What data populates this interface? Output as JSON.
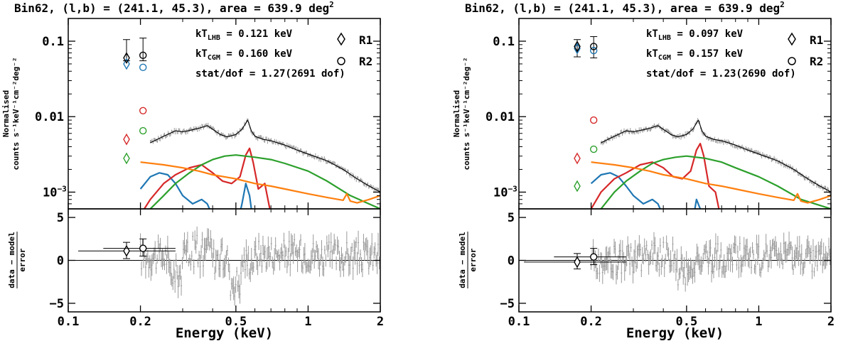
{
  "chart_data": [
    {
      "type": "line",
      "title": "Bin62, (l,b) = (241.1, 45.3), area = 639.9 deg²",
      "xlabel": "Energy (keV)",
      "ylabel_top": "Normalised counts s⁻¹ keV⁻¹ cm⁻² deg⁻²",
      "ylabel_bottom": "(data − model)/error",
      "xscale": "log",
      "xlim": [
        0.1,
        2
      ],
      "top_yscale": "log",
      "top_ylim": [
        0.0006,
        0.2
      ],
      "bottom_ylim": [
        -6,
        6
      ],
      "xticks": [
        "0.1",
        "0.2",
        "0.5",
        "1",
        "2"
      ],
      "top_yticks": [
        "10⁻³",
        "0.01",
        "0.1"
      ],
      "bottom_yticks": [
        "−5",
        "0",
        "5"
      ],
      "annotations": [
        "kT_LHB = 0.121 keV",
        "kT_CGM = 0.160 keV",
        "stat/dof = 1.27(2691 dof)"
      ],
      "legend": [
        {
          "name": "R1",
          "marker": "diamond"
        },
        {
          "name": "R2",
          "marker": "circle"
        }
      ],
      "colors": {
        "blue": "#1f77b4",
        "red": "#d62728",
        "green": "#2ca02c",
        "orange": "#ff7f0e",
        "gray": "#999999"
      },
      "rosat_points": {
        "R1": {
          "x": 0.175,
          "total": 0.06,
          "total_err": [
            0.055,
            0.105
          ],
          "blue": 0.05,
          "red": 0.005,
          "green": 0.0028,
          "residual": 1.1,
          "residual_err": [
            0.2,
            2.1
          ],
          "residual_xerr": [
            0.11,
            0.28
          ]
        },
        "R2": {
          "x": 0.205,
          "total": 0.065,
          "total_err": [
            0.055,
            0.11
          ],
          "blue": 0.045,
          "red": 0.012,
          "green": 0.0065,
          "residual": 1.4,
          "residual_err": [
            0.5,
            2.5
          ],
          "residual_xerr": [
            0.14,
            0.28
          ]
        }
      },
      "series": [
        {
          "name": "",
          "color": "blue",
          "x": [
            0.2,
            0.22,
            0.24,
            0.26,
            0.28,
            0.3,
            0.33,
            0.36,
            0.38,
            0.41,
            0.44,
            0.5,
            0.53,
            0.55,
            0.57,
            0.59,
            0.61
          ],
          "y": [
            0.0011,
            0.0016,
            0.0018,
            0.0017,
            0.0013,
            0.0009,
            0.0007,
            0.0008,
            0.0007,
            0.0004,
            0.0002,
            0.0003,
            0.0007,
            0.0013,
            0.0009,
            0.0004,
            0.0001
          ]
        },
        {
          "name": "",
          "color": "red",
          "x": [
            0.2,
            0.22,
            0.25,
            0.28,
            0.32,
            0.36,
            0.4,
            0.44,
            0.48,
            0.52,
            0.55,
            0.57,
            0.59,
            0.62,
            0.66,
            0.7
          ],
          "y": [
            0.0005,
            0.0008,
            0.0013,
            0.0017,
            0.0021,
            0.0023,
            0.0018,
            0.0014,
            0.0013,
            0.0016,
            0.0031,
            0.0038,
            0.0025,
            0.0011,
            0.0013,
            0.0005
          ]
        },
        {
          "name": "",
          "color": "green",
          "x": [
            0.2,
            0.22,
            0.25,
            0.28,
            0.32,
            0.36,
            0.4,
            0.45,
            0.5,
            0.6,
            0.7,
            0.8,
            1.0,
            1.2,
            1.5,
            2.0
          ],
          "y": [
            0.0004,
            0.0006,
            0.0009,
            0.0013,
            0.0018,
            0.0023,
            0.0027,
            0.003,
            0.0031,
            0.0029,
            0.0027,
            0.0024,
            0.0019,
            0.0014,
            0.0009,
            0.0006
          ]
        },
        {
          "name": "",
          "color": "orange",
          "x": [
            0.2,
            0.25,
            0.3,
            0.35,
            0.4,
            0.5,
            0.6,
            0.7,
            0.8,
            1.0,
            1.2,
            1.4,
            1.45,
            1.5,
            1.6,
            1.8,
            2.0
          ],
          "y": [
            0.0025,
            0.0023,
            0.0021,
            0.0019,
            0.0017,
            0.0015,
            0.0013,
            0.0012,
            0.0011,
            0.00095,
            0.00085,
            0.00078,
            0.00095,
            0.00076,
            0.00072,
            0.0008,
            0.0009
          ]
        },
        {
          "name": "",
          "color": "black",
          "x": [
            0.22,
            0.25,
            0.28,
            0.3,
            0.33,
            0.36,
            0.38,
            0.4,
            0.43,
            0.46,
            0.5,
            0.53,
            0.56,
            0.58,
            0.6,
            0.65,
            0.7,
            0.8,
            0.9,
            1.0,
            1.2,
            1.4,
            1.6,
            1.8,
            2.0
          ],
          "y": [
            0.0045,
            0.0055,
            0.0065,
            0.0063,
            0.0067,
            0.0072,
            0.0076,
            0.0068,
            0.0058,
            0.0054,
            0.0058,
            0.0068,
            0.009,
            0.0065,
            0.0055,
            0.005,
            0.0048,
            0.0042,
            0.0036,
            0.0032,
            0.0026,
            0.002,
            0.0015,
            0.0012,
            0.001
          ]
        }
      ]
    },
    {
      "type": "line",
      "title": "Bin62, (l,b) = (241.1, 45.3), area = 639.9 deg²",
      "xlabel": "Energy (keV)",
      "ylabel_top": "Normalised counts s⁻¹ keV⁻¹ cm⁻² deg⁻²",
      "ylabel_bottom": "(data − model)/error",
      "xscale": "log",
      "xlim": [
        0.1,
        2
      ],
      "top_yscale": "log",
      "top_ylim": [
        0.0006,
        0.2
      ],
      "bottom_ylim": [
        -6,
        6
      ],
      "xticks": [
        "0.1",
        "0.2",
        "0.5",
        "1",
        "2"
      ],
      "top_yticks": [
        "10⁻³",
        "0.01",
        "0.1"
      ],
      "bottom_yticks": [
        "−5",
        "0",
        "5"
      ],
      "annotations": [
        "kT_LHB = 0.097 keV",
        "kT_CGM = 0.157 keV",
        "stat/dof = 1.23(2690 dof)"
      ],
      "legend": [
        {
          "name": "R1",
          "marker": "diamond"
        },
        {
          "name": "R2",
          "marker": "circle"
        }
      ],
      "colors": {
        "blue": "#1f77b4",
        "red": "#d62728",
        "green": "#2ca02c",
        "orange": "#ff7f0e",
        "gray": "#999999"
      },
      "rosat_points": {
        "R1": {
          "x": 0.175,
          "total": 0.085,
          "total_err": [
            0.062,
            0.105
          ],
          "blue": 0.08,
          "red": 0.0028,
          "green": 0.0012,
          "residual": -0.2,
          "residual_err": [
            -1.0,
            0.8
          ],
          "residual_xerr": [
            0.105,
            0.28
          ]
        },
        "R2": {
          "x": 0.205,
          "total": 0.085,
          "total_err": [
            0.06,
            0.115
          ],
          "blue": 0.075,
          "red": 0.009,
          "green": 0.0037,
          "residual": 0.4,
          "residual_err": [
            -0.5,
            1.4
          ],
          "residual_xerr": [
            0.14,
            0.28
          ]
        }
      },
      "series": [
        {
          "name": "",
          "color": "blue",
          "x": [
            0.2,
            0.22,
            0.24,
            0.26,
            0.28,
            0.3,
            0.33,
            0.36,
            0.38,
            0.41,
            0.44,
            0.5,
            0.53,
            0.55,
            0.57,
            0.59,
            0.61
          ],
          "y": [
            0.0013,
            0.0017,
            0.0018,
            0.0016,
            0.0012,
            0.0009,
            0.0007,
            0.0008,
            0.0007,
            0.0004,
            0.0002,
            0.0002,
            0.0004,
            0.0008,
            0.0006,
            0.0003,
            0.0001
          ]
        },
        {
          "name": "",
          "color": "red",
          "x": [
            0.2,
            0.22,
            0.25,
            0.28,
            0.32,
            0.36,
            0.4,
            0.44,
            0.48,
            0.52,
            0.55,
            0.57,
            0.59,
            0.62,
            0.66,
            0.7
          ],
          "y": [
            0.0006,
            0.001,
            0.0015,
            0.0018,
            0.0023,
            0.0025,
            0.0021,
            0.0016,
            0.0015,
            0.0019,
            0.0036,
            0.0044,
            0.003,
            0.0012,
            0.001,
            0.0004
          ]
        },
        {
          "name": "",
          "color": "green",
          "x": [
            0.2,
            0.22,
            0.25,
            0.28,
            0.32,
            0.36,
            0.4,
            0.45,
            0.5,
            0.6,
            0.7,
            0.8,
            1.0,
            1.2,
            1.5,
            2.0
          ],
          "y": [
            0.0004,
            0.0006,
            0.001,
            0.0014,
            0.0019,
            0.0024,
            0.0027,
            0.0029,
            0.003,
            0.0028,
            0.0025,
            0.0021,
            0.0016,
            0.0012,
            0.0008,
            0.0006
          ]
        },
        {
          "name": "",
          "color": "orange",
          "x": [
            0.2,
            0.25,
            0.3,
            0.35,
            0.4,
            0.5,
            0.6,
            0.7,
            0.8,
            1.0,
            1.2,
            1.4,
            1.45,
            1.5,
            1.6,
            1.8,
            2.0
          ],
          "y": [
            0.0025,
            0.0023,
            0.0021,
            0.0019,
            0.0017,
            0.0015,
            0.0013,
            0.0012,
            0.0011,
            0.00095,
            0.00085,
            0.00078,
            0.00095,
            0.00076,
            0.00072,
            0.0008,
            0.0009
          ]
        },
        {
          "name": "",
          "color": "black",
          "x": [
            0.22,
            0.25,
            0.28,
            0.3,
            0.33,
            0.36,
            0.38,
            0.4,
            0.43,
            0.46,
            0.5,
            0.53,
            0.56,
            0.58,
            0.6,
            0.65,
            0.7,
            0.8,
            0.9,
            1.0,
            1.2,
            1.4,
            1.6,
            1.8,
            2.0
          ],
          "y": [
            0.0045,
            0.0055,
            0.0065,
            0.0063,
            0.0067,
            0.0072,
            0.0076,
            0.0068,
            0.0058,
            0.0054,
            0.0058,
            0.0068,
            0.009,
            0.0065,
            0.0055,
            0.005,
            0.0048,
            0.0042,
            0.0036,
            0.0032,
            0.0026,
            0.002,
            0.0015,
            0.0012,
            0.001
          ]
        }
      ]
    }
  ]
}
